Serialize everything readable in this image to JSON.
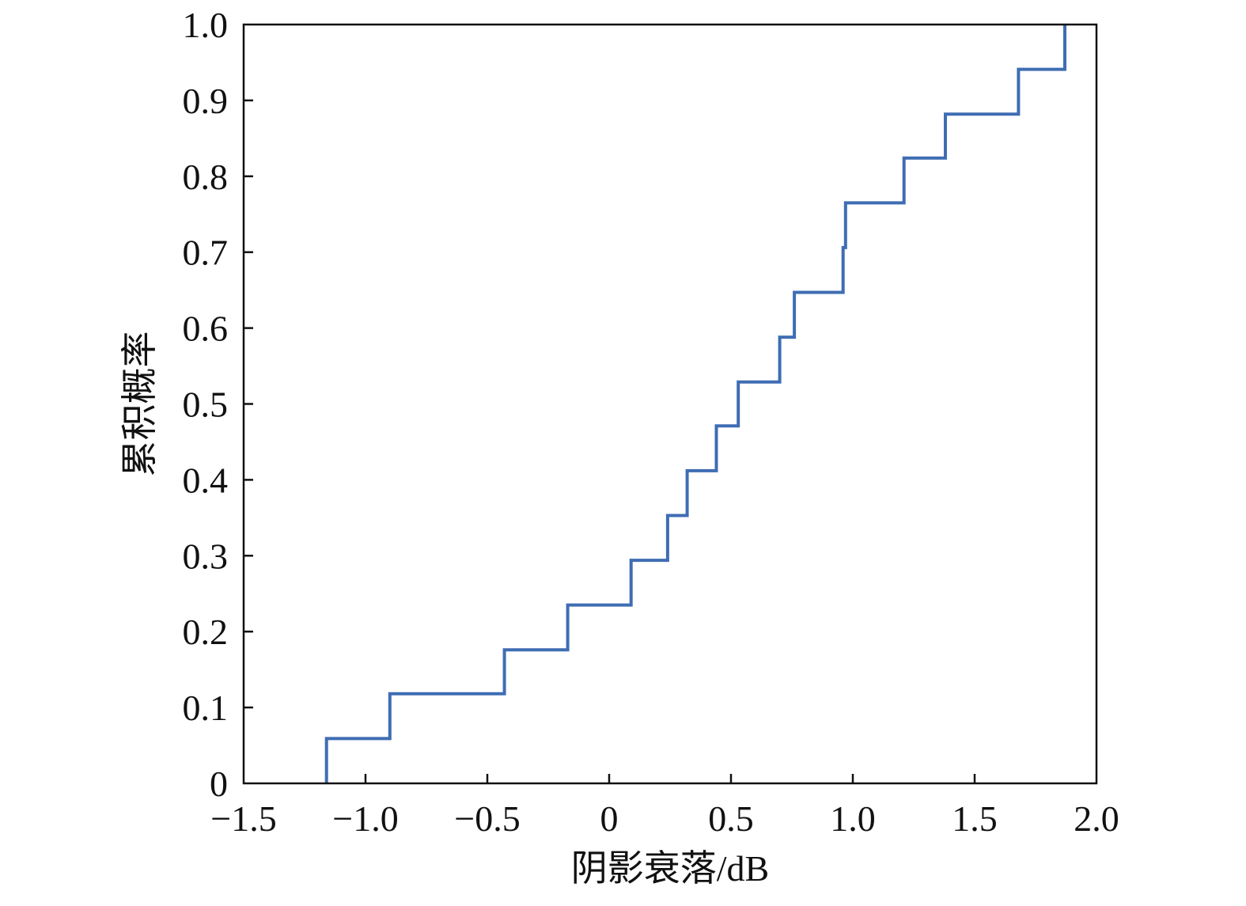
{
  "chart_data": {
    "type": "line",
    "subtype": "empirical-cdf-step",
    "title": "",
    "xlabel": "阴影衰落/dB",
    "ylabel": "累积概率",
    "xlim": [
      -1.5,
      2.0
    ],
    "ylim": [
      0,
      1.0
    ],
    "xticks": [
      -1.5,
      -1.0,
      -0.5,
      0,
      0.5,
      1.0,
      1.5,
      2.0
    ],
    "xtick_labels": [
      "−1.5",
      "−1.0",
      "−0.5",
      "0",
      "0.5",
      "1.0",
      "1.5",
      "2.0"
    ],
    "yticks": [
      0,
      0.1,
      0.2,
      0.3,
      0.4,
      0.5,
      0.6,
      0.7,
      0.8,
      0.9,
      1.0
    ],
    "ytick_labels": [
      "0",
      "0.1",
      "0.2",
      "0.3",
      "0.4",
      "0.5",
      "0.6",
      "0.7",
      "0.8",
      "0.9",
      "1.0"
    ],
    "grid": false,
    "legend": "none",
    "series": [
      {
        "color": "#3f6db3",
        "steps": [
          {
            "x": -1.16,
            "y": 0.059
          },
          {
            "x": -0.9,
            "y": 0.118
          },
          {
            "x": -0.43,
            "y": 0.176
          },
          {
            "x": -0.17,
            "y": 0.235
          },
          {
            "x": 0.09,
            "y": 0.294
          },
          {
            "x": 0.24,
            "y": 0.353
          },
          {
            "x": 0.32,
            "y": 0.412
          },
          {
            "x": 0.44,
            "y": 0.471
          },
          {
            "x": 0.53,
            "y": 0.529
          },
          {
            "x": 0.7,
            "y": 0.588
          },
          {
            "x": 0.76,
            "y": 0.647
          },
          {
            "x": 0.96,
            "y": 0.706
          },
          {
            "x": 0.97,
            "y": 0.765
          },
          {
            "x": 1.21,
            "y": 0.824
          },
          {
            "x": 1.38,
            "y": 0.882
          },
          {
            "x": 1.68,
            "y": 0.941
          },
          {
            "x": 1.87,
            "y": 1.0
          }
        ]
      }
    ]
  }
}
